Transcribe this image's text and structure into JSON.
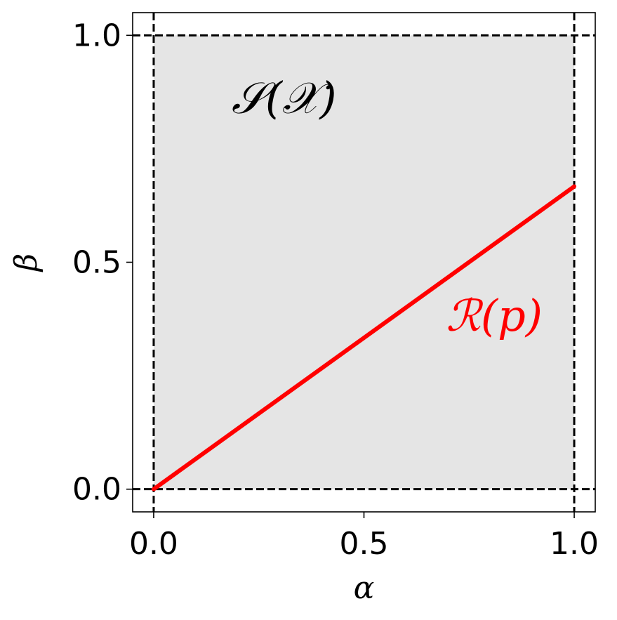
{
  "chart_data": {
    "type": "line",
    "xlabel": "α",
    "ylabel": "β",
    "xlim": [
      -0.05,
      1.05
    ],
    "ylim": [
      -0.05,
      1.05
    ],
    "xticks": [
      0.0,
      0.5,
      1.0
    ],
    "yticks": [
      0.0,
      0.5,
      1.0
    ],
    "xtick_labels": [
      "0.0",
      "0.5",
      "1.0"
    ],
    "ytick_labels": [
      "0.0",
      "0.5",
      "1.0"
    ],
    "grid": false,
    "shaded_region": {
      "label": "𝒮(𝒳)",
      "x": [
        0.0,
        1.0
      ],
      "y": [
        0.0,
        1.0
      ],
      "color": "#e5e5e5"
    },
    "reference_lines": {
      "x": [
        0.0,
        1.0
      ],
      "y": [
        0.0,
        1.0
      ],
      "style": "dashed",
      "color": "#000000"
    },
    "series": [
      {
        "name": "ℛ(p)",
        "x": [
          0.0,
          1.0
        ],
        "y": [
          0.0,
          0.667
        ],
        "color": "#ff0000"
      }
    ],
    "annotations": [
      {
        "text": "𝒮(𝒳)",
        "x": 0.31,
        "y": 0.86,
        "color": "#000000"
      },
      {
        "text": "ℛ(p)",
        "x": 0.81,
        "y": 0.38,
        "color": "#ff0000"
      }
    ]
  }
}
